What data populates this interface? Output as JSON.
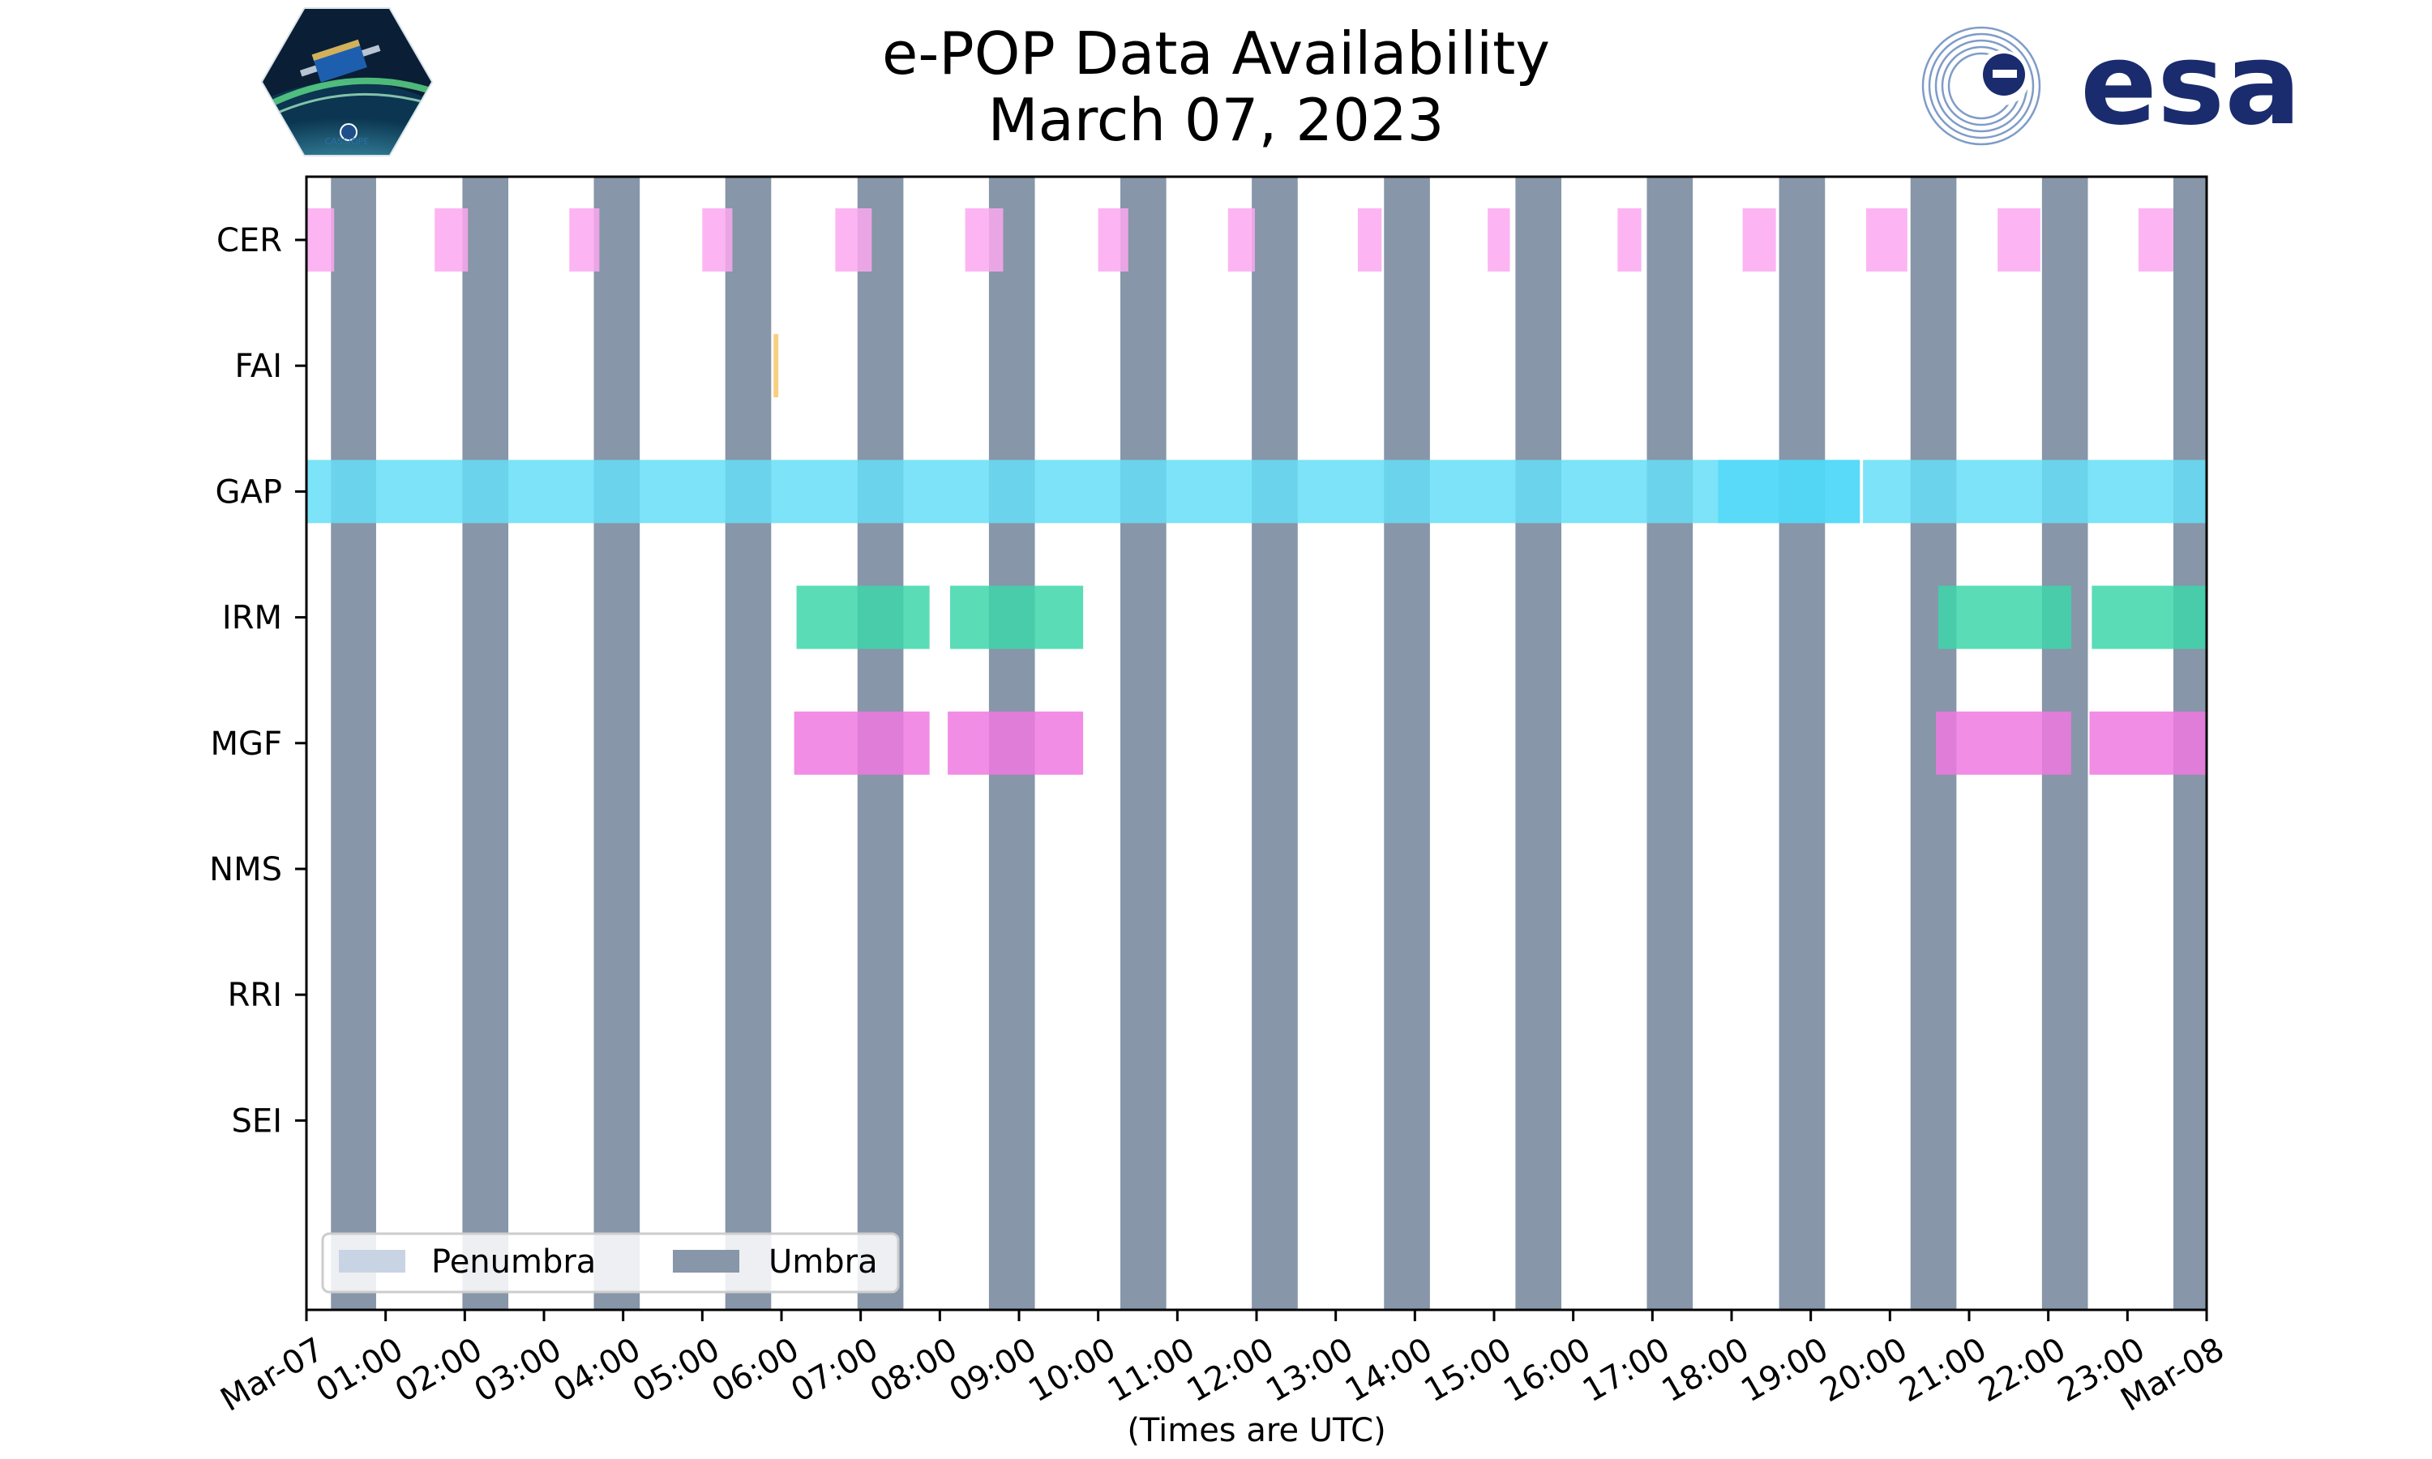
{
  "chart_data": {
    "type": "timeline",
    "title": "e-POP Data Availability",
    "subtitle": "March 07, 2023",
    "xlabel": "(Times are UTC)",
    "x_range_hours": [
      0,
      24
    ],
    "x_tick_labels": [
      "Mar-07",
      "01:00",
      "02:00",
      "03:00",
      "04:00",
      "05:00",
      "06:00",
      "07:00",
      "08:00",
      "09:00",
      "10:00",
      "11:00",
      "12:00",
      "13:00",
      "14:00",
      "15:00",
      "16:00",
      "17:00",
      "18:00",
      "19:00",
      "20:00",
      "21:00",
      "22:00",
      "23:00",
      "Mar-08"
    ],
    "instruments": [
      "CER",
      "FAI",
      "GAP",
      "IRM",
      "MGF",
      "NMS",
      "RRI",
      "SEI"
    ],
    "colors": {
      "CER": "#fba8f0",
      "FAI": "#f7c66a",
      "GAP": "#66def7",
      "GAP_dark": "#48d6f8",
      "IRM": "#3dd6aa",
      "MGF": "#ef79e0",
      "umbra": "#8796a8",
      "penumbra": "#c8d4e4"
    },
    "umbra_intervals": [
      [
        0.31,
        0.88
      ],
      [
        1.97,
        2.55
      ],
      [
        3.63,
        4.21
      ],
      [
        5.29,
        5.87
      ],
      [
        6.96,
        7.54
      ],
      [
        8.62,
        9.2
      ],
      [
        10.28,
        10.86
      ],
      [
        11.94,
        12.52
      ],
      [
        13.61,
        14.19
      ],
      [
        15.27,
        15.85
      ],
      [
        16.93,
        17.51
      ],
      [
        18.6,
        19.18
      ],
      [
        20.26,
        20.84
      ],
      [
        21.92,
        22.5
      ],
      [
        23.58,
        24.0
      ]
    ],
    "penumbra_intervals": [],
    "series": [
      {
        "name": "CER",
        "intervals": [
          [
            0,
            0.35
          ],
          [
            1.62,
            2.04
          ],
          [
            3.32,
            3.7
          ],
          [
            5.0,
            5.38
          ],
          [
            6.68,
            7.14
          ],
          [
            8.32,
            8.8
          ],
          [
            10.0,
            10.38
          ],
          [
            11.64,
            11.98
          ],
          [
            13.28,
            13.58
          ],
          [
            14.92,
            15.2
          ],
          [
            16.56,
            16.86
          ],
          [
            18.14,
            18.56
          ],
          [
            19.7,
            20.22
          ],
          [
            21.36,
            21.9
          ],
          [
            23.14,
            23.58
          ]
        ]
      },
      {
        "name": "FAI",
        "intervals": [
          [
            5.9,
            5.96
          ]
        ]
      },
      {
        "name": "GAP",
        "intervals": [
          [
            0,
            19.62
          ],
          [
            19.66,
            24.0
          ]
        ],
        "dense_interval": [
          17.83,
          19.62
        ]
      },
      {
        "name": "IRM",
        "intervals": [
          [
            6.19,
            7.87
          ],
          [
            8.13,
            9.81
          ],
          [
            20.61,
            22.29
          ],
          [
            22.55,
            24.0
          ]
        ]
      },
      {
        "name": "MGF",
        "intervals": [
          [
            6.16,
            7.87
          ],
          [
            8.1,
            9.81
          ],
          [
            20.58,
            22.29
          ],
          [
            22.52,
            24.0
          ]
        ]
      },
      {
        "name": "NMS",
        "intervals": []
      },
      {
        "name": "RRI",
        "intervals": []
      },
      {
        "name": "SEI",
        "intervals": []
      }
    ],
    "legend": {
      "placement": "lower-left",
      "entries": [
        "Penumbra",
        "Umbra"
      ]
    }
  }
}
